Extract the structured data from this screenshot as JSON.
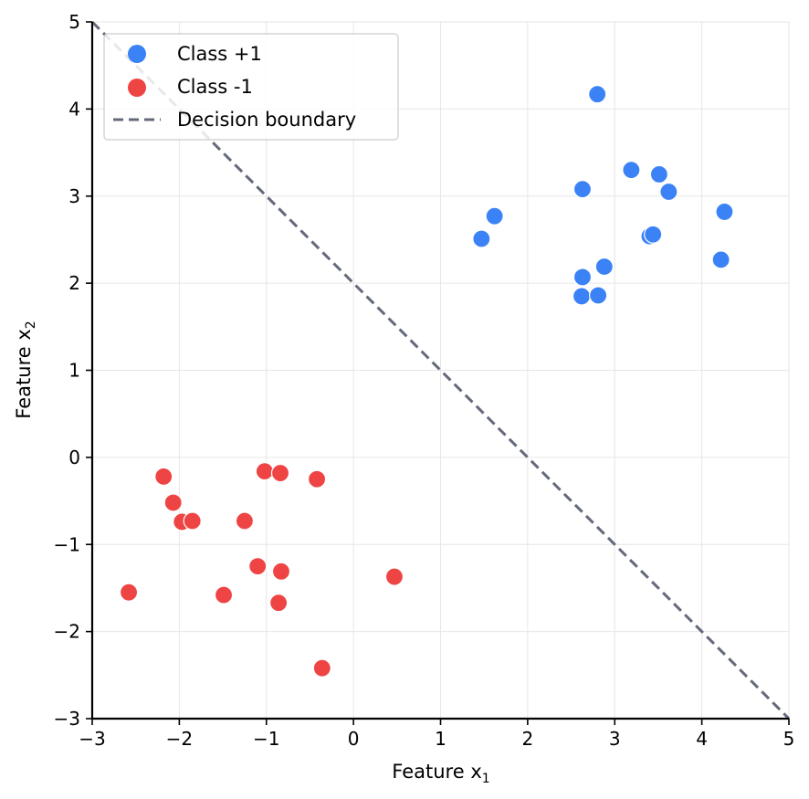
{
  "chart_data": {
    "type": "scatter",
    "title": "",
    "xlabel": {
      "text": "Feature x",
      "sub": "1"
    },
    "ylabel": {
      "text": "Feature x",
      "sub": "2"
    },
    "xlim": [
      -3,
      5
    ],
    "ylim": [
      -3,
      5
    ],
    "xticks": [
      -3,
      -2,
      -1,
      0,
      1,
      2,
      3,
      4,
      5
    ],
    "yticks": [
      -3,
      -2,
      -1,
      0,
      1,
      2,
      3,
      4,
      5
    ],
    "xtick_labels": [
      "−3",
      "−2",
      "−1",
      "0",
      "1",
      "2",
      "3",
      "4",
      "5"
    ],
    "ytick_labels": [
      "−3",
      "−2",
      "−1",
      "0",
      "1",
      "2",
      "3",
      "4",
      "5"
    ],
    "grid": true,
    "legend_position": "top-left",
    "series": [
      {
        "name": "Class +1",
        "color": "#3b82f6",
        "points": [
          [
            2.8,
            4.17
          ],
          [
            3.19,
            3.3
          ],
          [
            3.51,
            3.25
          ],
          [
            3.62,
            3.05
          ],
          [
            2.63,
            3.08
          ],
          [
            4.26,
            2.82
          ],
          [
            1.62,
            2.77
          ],
          [
            1.47,
            2.51
          ],
          [
            3.4,
            2.54
          ],
          [
            3.44,
            2.56
          ],
          [
            4.22,
            2.27
          ],
          [
            2.88,
            2.19
          ],
          [
            2.63,
            2.07
          ],
          [
            2.62,
            1.85
          ],
          [
            2.81,
            1.86
          ]
        ]
      },
      {
        "name": "Class -1",
        "color": "#ef4444",
        "points": [
          [
            -2.18,
            -0.22
          ],
          [
            -2.07,
            -0.52
          ],
          [
            -1.97,
            -0.74
          ],
          [
            -1.85,
            -0.73
          ],
          [
            -1.02,
            -0.16
          ],
          [
            -0.84,
            -0.18
          ],
          [
            -0.42,
            -0.25
          ],
          [
            -1.25,
            -0.73
          ],
          [
            -1.1,
            -1.25
          ],
          [
            -0.83,
            -1.31
          ],
          [
            0.47,
            -1.37
          ],
          [
            -2.58,
            -1.55
          ],
          [
            -1.49,
            -1.58
          ],
          [
            -0.86,
            -1.67
          ],
          [
            -0.36,
            -2.42
          ]
        ]
      }
    ],
    "decision_boundary": {
      "name": "Decision boundary",
      "color": "#64697a",
      "style": "dashed",
      "x": [
        -3,
        5
      ],
      "y": [
        5,
        -3
      ]
    }
  }
}
